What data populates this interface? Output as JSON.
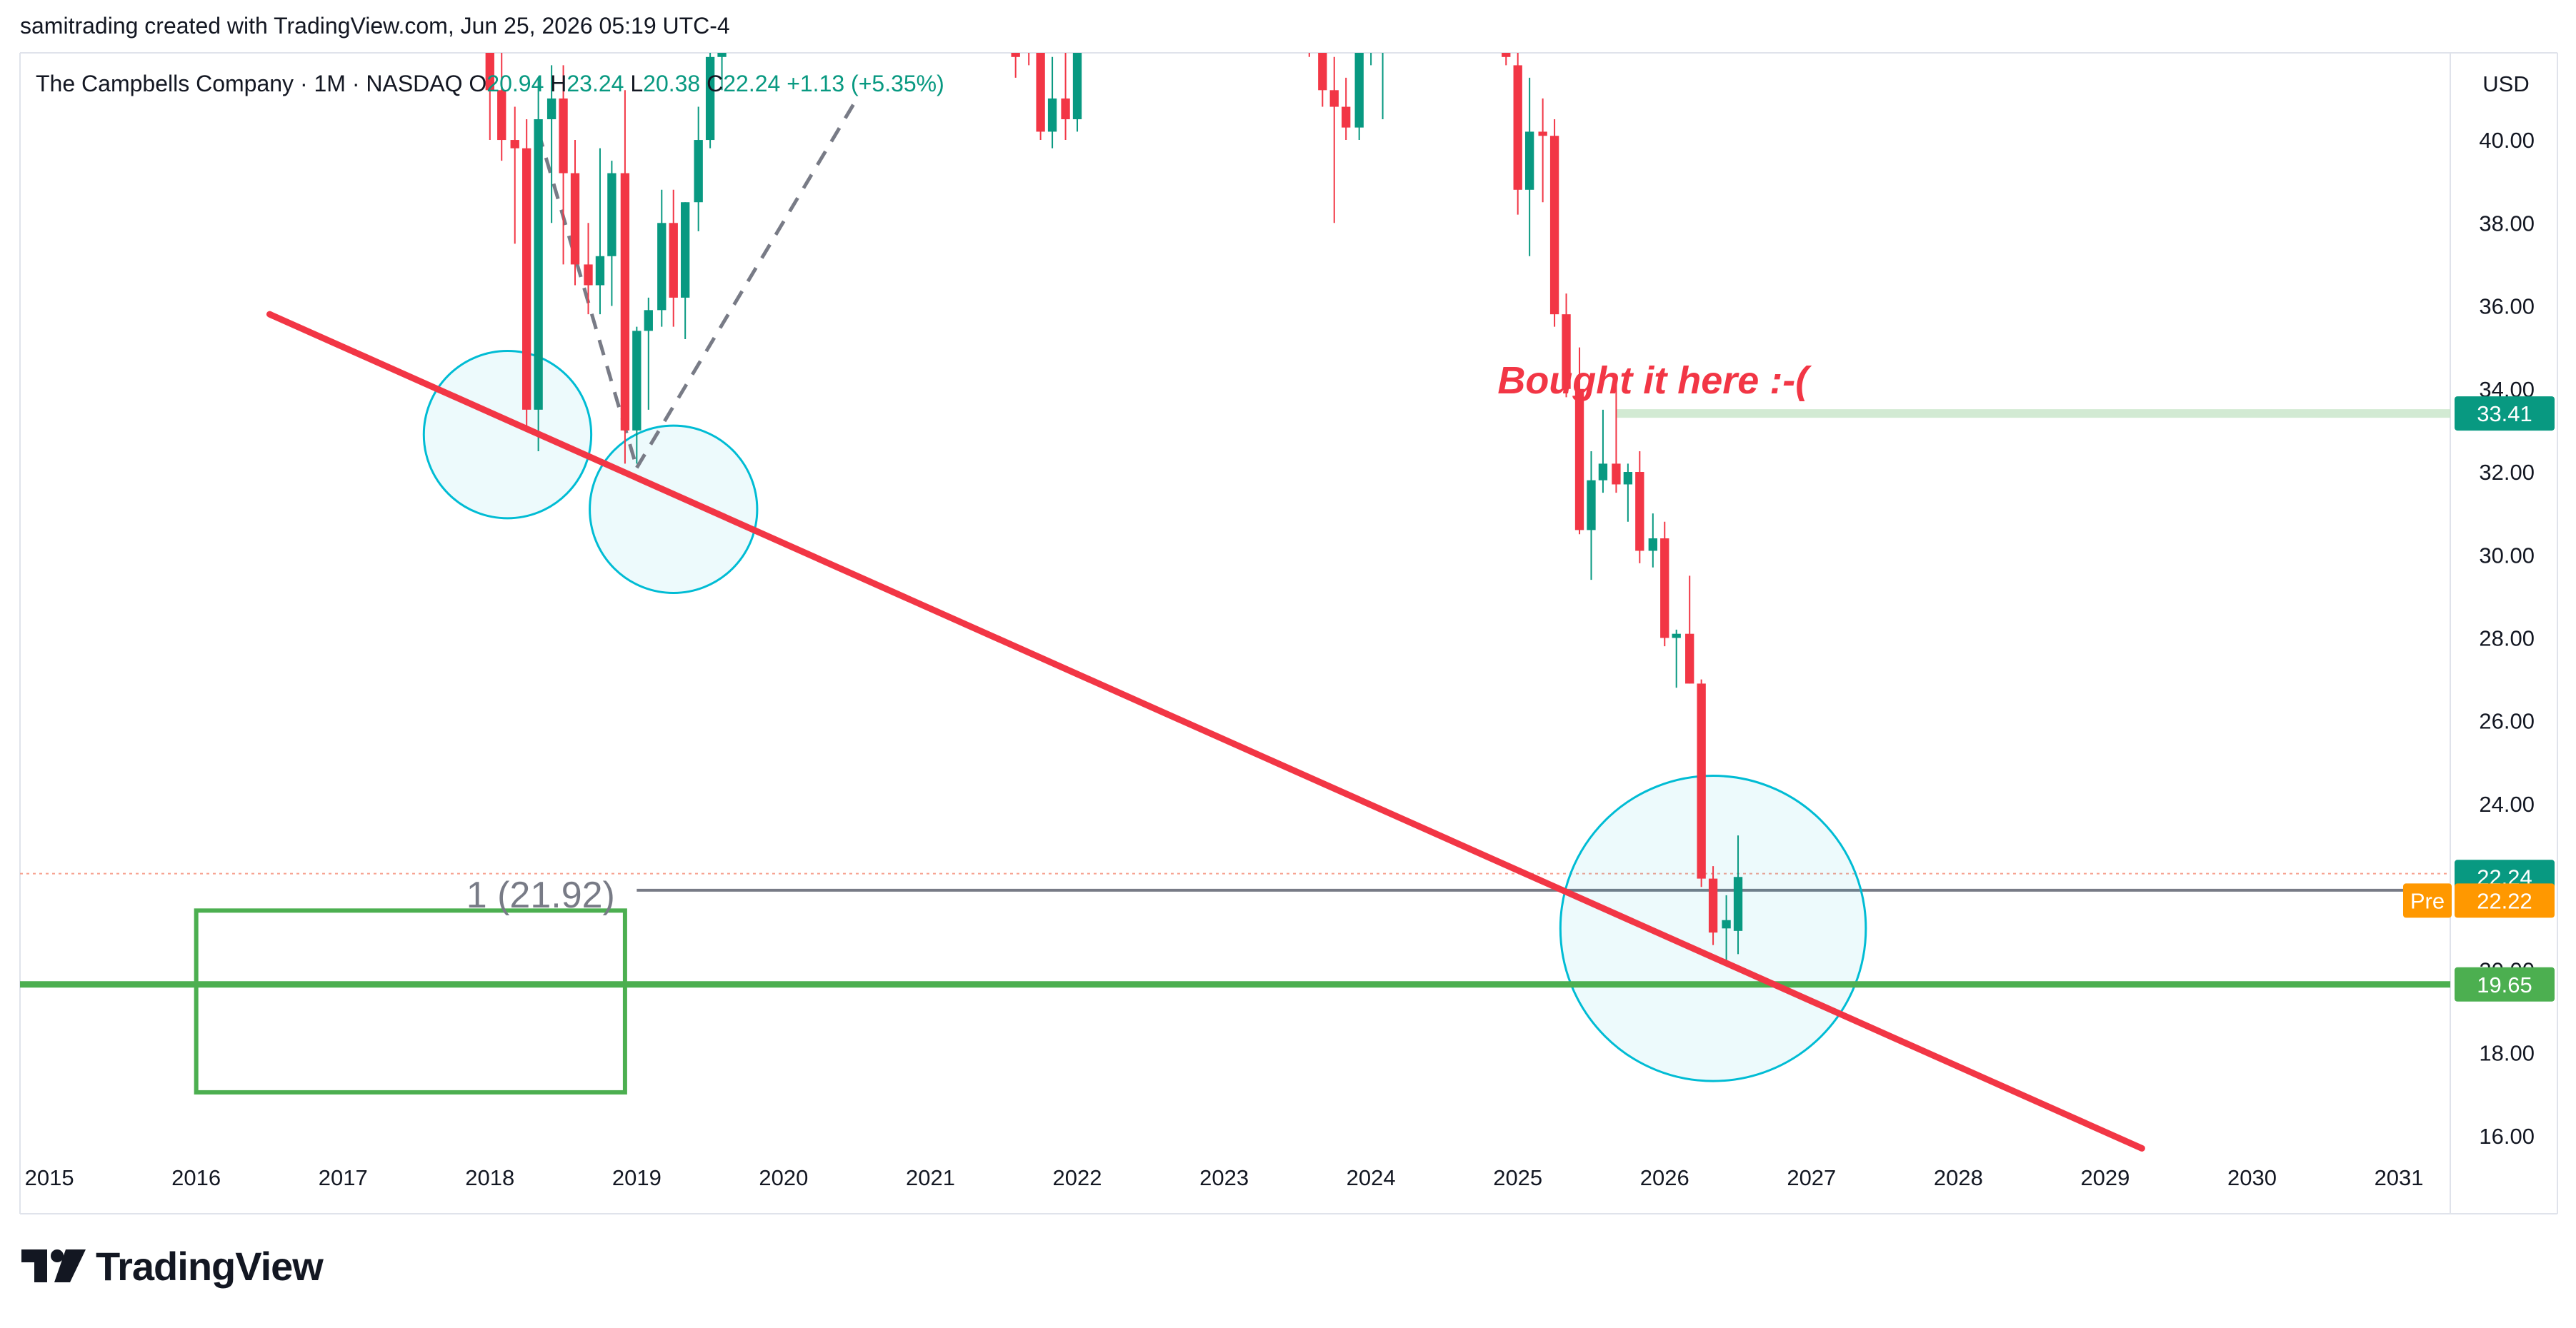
{
  "header": {
    "created_by": "samitrading created with TradingView.com, Jun 25, 2026 05:19 UTC-4"
  },
  "legend": {
    "symbol": "The Campbells Company · 1M · NASDAQ",
    "o_label": "O",
    "o_value": "20.94",
    "h_label": "H",
    "h_value": "23.24",
    "l_label": "L",
    "l_value": "20.38",
    "c_label": "C",
    "c_value": "22.24",
    "change": "+1.13 (+5.35%)"
  },
  "currency": "USD",
  "footer": {
    "logo_text": "TradingView"
  },
  "colors": {
    "up": "#089981",
    "down": "#f23645",
    "trendline": "#f23645",
    "support": "#4caf50",
    "circles": "#00bcd4",
    "price_tag": "#089981",
    "pre_tag": "#ff9800",
    "annotation": "#f23645"
  },
  "chart_data": {
    "type": "candlestick",
    "timeframe": "1M",
    "x_ticks": [
      "2015",
      "2016",
      "2017",
      "2018",
      "2019",
      "2020",
      "2021",
      "2022",
      "2023",
      "2024",
      "2025",
      "2026",
      "2027",
      "2028",
      "2029",
      "2030",
      "2031"
    ],
    "y_ticks": [
      "16.00",
      "18.00",
      "20.00",
      "22.00",
      "24.00",
      "26.00",
      "28.00",
      "30.00",
      "32.00",
      "34.00",
      "36.00",
      "38.00",
      "40.00"
    ],
    "y_range": [
      15.5,
      42.1
    ],
    "x_range": [
      2014.8,
      2031.35
    ],
    "candles": [
      {
        "t": 2018.0,
        "o": 42.5,
        "h": 43.5,
        "l": 40.0,
        "c": 41.2
      },
      {
        "t": 2018.08,
        "o": 41.2,
        "h": 42.5,
        "l": 39.5,
        "c": 40.0
      },
      {
        "t": 2018.17,
        "o": 40.0,
        "h": 40.8,
        "l": 37.5,
        "c": 39.8
      },
      {
        "t": 2018.25,
        "o": 39.8,
        "h": 40.5,
        "l": 33.0,
        "c": 33.5
      },
      {
        "t": 2018.33,
        "o": 33.5,
        "h": 41.5,
        "l": 32.5,
        "c": 40.5
      },
      {
        "t": 2018.42,
        "o": 40.5,
        "h": 41.8,
        "l": 38.0,
        "c": 41.0
      },
      {
        "t": 2018.5,
        "o": 41.0,
        "h": 41.8,
        "l": 37.0,
        "c": 39.2
      },
      {
        "t": 2018.58,
        "o": 39.2,
        "h": 40.0,
        "l": 36.5,
        "c": 37.0
      },
      {
        "t": 2018.67,
        "o": 37.0,
        "h": 38.0,
        "l": 35.8,
        "c": 36.5
      },
      {
        "t": 2018.75,
        "o": 36.5,
        "h": 39.8,
        "l": 35.8,
        "c": 37.2
      },
      {
        "t": 2018.83,
        "o": 37.2,
        "h": 39.5,
        "l": 36.0,
        "c": 39.2
      },
      {
        "t": 2018.92,
        "o": 39.2,
        "h": 41.2,
        "l": 32.2,
        "c": 33.0
      },
      {
        "t": 2019.0,
        "o": 33.0,
        "h": 35.5,
        "l": 32.2,
        "c": 35.4
      },
      {
        "t": 2019.08,
        "o": 35.4,
        "h": 36.2,
        "l": 33.5,
        "c": 35.9
      },
      {
        "t": 2019.17,
        "o": 35.9,
        "h": 38.8,
        "l": 35.5,
        "c": 38.0
      },
      {
        "t": 2019.25,
        "o": 38.0,
        "h": 38.8,
        "l": 35.5,
        "c": 36.2
      },
      {
        "t": 2019.33,
        "o": 36.2,
        "h": 38.5,
        "l": 35.2,
        "c": 38.5
      },
      {
        "t": 2019.42,
        "o": 38.5,
        "h": 40.8,
        "l": 37.8,
        "c": 40.0
      },
      {
        "t": 2019.5,
        "o": 40.0,
        "h": 43.0,
        "l": 39.8,
        "c": 42.0
      },
      {
        "t": 2019.58,
        "o": 42.0,
        "h": 43.5,
        "l": 41.2,
        "c": 42.6
      },
      {
        "t": 2021.58,
        "o": 42.8,
        "h": 43.5,
        "l": 41.5,
        "c": 42.0
      },
      {
        "t": 2021.67,
        "o": 43.0,
        "h": 44.0,
        "l": 41.8,
        "c": 42.2
      },
      {
        "t": 2021.75,
        "o": 42.2,
        "h": 43.0,
        "l": 40.0,
        "c": 40.2
      },
      {
        "t": 2021.83,
        "o": 40.2,
        "h": 42.0,
        "l": 39.8,
        "c": 41.0
      },
      {
        "t": 2021.92,
        "o": 41.0,
        "h": 43.5,
        "l": 40.0,
        "c": 40.5
      },
      {
        "t": 2022.0,
        "o": 40.5,
        "h": 43.5,
        "l": 40.2,
        "c": 43.2
      },
      {
        "t": 2023.58,
        "o": 42.8,
        "h": 43.5,
        "l": 42.0,
        "c": 42.2
      },
      {
        "t": 2023.67,
        "o": 42.2,
        "h": 43.0,
        "l": 40.8,
        "c": 41.2
      },
      {
        "t": 2023.75,
        "o": 41.2,
        "h": 42.0,
        "l": 38.0,
        "c": 40.8
      },
      {
        "t": 2023.83,
        "o": 40.8,
        "h": 41.5,
        "l": 40.0,
        "c": 40.3
      },
      {
        "t": 2023.92,
        "o": 40.3,
        "h": 42.8,
        "l": 40.0,
        "c": 42.5
      },
      {
        "t": 2024.0,
        "o": 42.5,
        "h": 43.2,
        "l": 41.8,
        "c": 43.0
      },
      {
        "t": 2024.08,
        "o": 43.0,
        "h": 43.5,
        "l": 40.5,
        "c": 43.2
      },
      {
        "t": 2024.92,
        "o": 42.5,
        "h": 43.0,
        "l": 41.8,
        "c": 42.0
      },
      {
        "t": 2025.0,
        "o": 41.8,
        "h": 42.2,
        "l": 38.2,
        "c": 38.8
      },
      {
        "t": 2025.08,
        "o": 38.8,
        "h": 41.5,
        "l": 37.2,
        "c": 40.2
      },
      {
        "t": 2025.17,
        "o": 40.2,
        "h": 41.0,
        "l": 38.5,
        "c": 40.1
      },
      {
        "t": 2025.25,
        "o": 40.1,
        "h": 40.5,
        "l": 35.5,
        "c": 35.8
      },
      {
        "t": 2025.33,
        "o": 35.8,
        "h": 36.3,
        "l": 33.8,
        "c": 34.0
      },
      {
        "t": 2025.42,
        "o": 34.0,
        "h": 35.0,
        "l": 30.5,
        "c": 30.6
      },
      {
        "t": 2025.5,
        "o": 30.6,
        "h": 32.5,
        "l": 29.4,
        "c": 31.8
      },
      {
        "t": 2025.58,
        "o": 31.8,
        "h": 33.5,
        "l": 31.5,
        "c": 32.2
      },
      {
        "t": 2025.67,
        "o": 32.2,
        "h": 34.2,
        "l": 31.5,
        "c": 31.7
      },
      {
        "t": 2025.75,
        "o": 31.7,
        "h": 32.2,
        "l": 30.8,
        "c": 32.0
      },
      {
        "t": 2025.83,
        "o": 32.0,
        "h": 32.5,
        "l": 29.8,
        "c": 30.1
      },
      {
        "t": 2025.92,
        "o": 30.1,
        "h": 31.0,
        "l": 29.7,
        "c": 30.4
      },
      {
        "t": 2026.0,
        "o": 30.4,
        "h": 30.8,
        "l": 27.8,
        "c": 28.0
      },
      {
        "t": 2026.08,
        "o": 28.0,
        "h": 28.2,
        "l": 26.8,
        "c": 28.1
      },
      {
        "t": 2026.17,
        "o": 28.1,
        "h": 29.5,
        "l": 26.9,
        "c": 26.9
      },
      {
        "t": 2026.25,
        "o": 26.9,
        "h": 27.0,
        "l": 22.0,
        "c": 22.2
      },
      {
        "t": 2026.33,
        "o": 22.2,
        "h": 22.5,
        "l": 20.6,
        "c": 20.9
      },
      {
        "t": 2026.42,
        "o": 21.0,
        "h": 21.8,
        "l": 20.2,
        "c": 21.2
      },
      {
        "t": 2026.5,
        "o": 20.94,
        "h": 23.24,
        "l": 20.38,
        "c": 22.24
      }
    ],
    "trendline": {
      "x1": 2016.5,
      "y1": 35.8,
      "x2": 2029.25,
      "y2": 15.7
    },
    "support_line": {
      "price": 19.65,
      "label": "19.65"
    },
    "measure_box": {
      "x1": 2016.0,
      "x2": 2018.92,
      "y1": 21.43,
      "y2": 17.05,
      "label": "1 (21.92)"
    },
    "horizontal_line": {
      "price": 21.92,
      "x_start": 2019.0
    },
    "entry_line": {
      "price": 33.41,
      "label": "33.41",
      "x_start": 2025.67
    },
    "annotation": {
      "text": "Bought it here :-(",
      "x": 2025.92,
      "y": 34.2
    },
    "circles": [
      {
        "cx": 2018.12,
        "cy": 32.9,
        "r_years": 0.57
      },
      {
        "cx": 2019.25,
        "cy": 31.1,
        "r_years": 0.57
      },
      {
        "cx": 2026.33,
        "cy": 21.0,
        "r_years": 1.04
      }
    ],
    "dashed_lines": [
      {
        "x1": 2018.33,
        "y1": 40.2,
        "x2": 2019.0,
        "y2": 32.1
      },
      {
        "x1": 2019.0,
        "y1": 32.1,
        "x2": 2020.5,
        "y2": 41.0
      }
    ],
    "last_price": {
      "price": 22.24,
      "label": "22.24"
    },
    "pre_price": {
      "price": 22.22,
      "label": "22.22",
      "tag": "Pre"
    },
    "last_price_dotted": 22.32
  }
}
